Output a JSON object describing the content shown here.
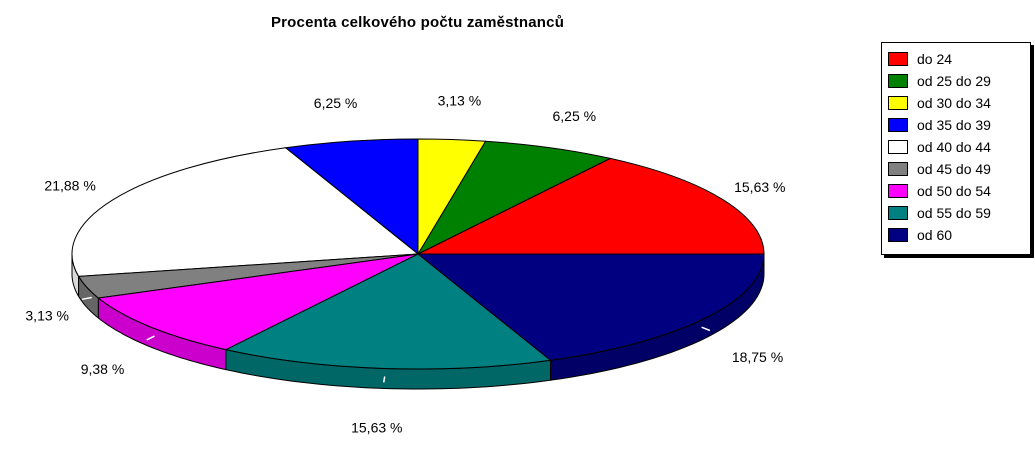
{
  "chart_data": {
    "type": "pie",
    "title": "Procenta celkového počtu zaměstnanců",
    "legend_position": "right",
    "three_d": true,
    "categories": [
      "do 24",
      "od 25 do 29",
      "od 30 do 34",
      "od 35 do 39",
      "od 40 do 44",
      "od 45 do 49",
      "od 50 do 54",
      "od 55 do 59",
      "od 60"
    ],
    "values": [
      15.63,
      6.25,
      3.13,
      6.25,
      21.88,
      3.13,
      9.38,
      15.63,
      18.75
    ],
    "labels": [
      "15,63 %",
      "6,25 %",
      "3,13 %",
      "6,25 %",
      "21,88 %",
      "3,13 %",
      "9,38 %",
      "15,63 %",
      "18,75 %"
    ],
    "colors": [
      "#ff0000",
      "#008000",
      "#ffff00",
      "#0000ff",
      "#ffffff",
      "#808080",
      "#ff00ff",
      "#008080",
      "#000080"
    ]
  }
}
